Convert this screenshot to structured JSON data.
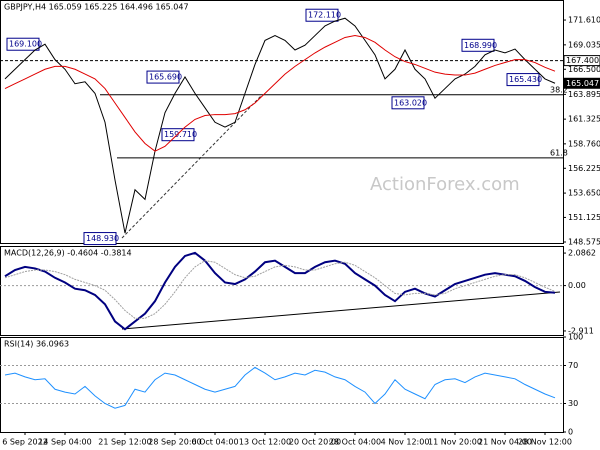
{
  "watermark": "ActionForex.com",
  "chart_data": [
    {
      "type": "line",
      "title": "GBPJPY,H4 165.059 165.225 164.496 165.047",
      "categories": [
        null,
        null,
        "6 Sep 2022",
        null,
        null,
        null,
        "14 Sep 04:00",
        null,
        null,
        null,
        null,
        null,
        "21 Sep 12:00",
        null,
        null,
        null,
        null,
        "28 Sep 20:00",
        null,
        null,
        null,
        "6 Oct 04:00",
        null,
        null,
        null,
        null,
        "13 Oct 12:00",
        null,
        null,
        null,
        null,
        "20 Oct 20:00",
        null,
        null,
        null,
        "28 Oct 04:00",
        null,
        null,
        null,
        null,
        "4 Nov 12:00",
        null,
        null,
        null,
        null,
        "11 Nov 20:00",
        null,
        null,
        null,
        null,
        "21 Nov 04:00",
        null,
        null,
        null,
        "28 Nov 12:00",
        null
      ],
      "series": [
        {
          "name": "GBPJPY",
          "color": "#000000",
          "values": [
            165.5,
            166.5,
            167.5,
            168.5,
            169.1,
            167.5,
            166.5,
            165,
            165.2,
            164,
            161,
            155,
            149.5,
            154,
            153,
            158,
            162,
            164,
            165.7,
            164,
            162.5,
            161,
            160.5,
            161,
            164,
            167,
            169.5,
            170,
            169.5,
            168.5,
            169,
            170,
            171,
            171.5,
            171.8,
            171,
            169.5,
            168,
            165.5,
            166.5,
            168.5,
            166.5,
            165.5,
            163.5,
            164.5,
            165.5,
            166,
            166.8,
            168,
            168.5,
            168.2,
            168.6,
            167.5,
            166.5,
            165.5,
            165.05
          ]
        },
        {
          "name": "MA",
          "color": "#e00000",
          "values": [
            164.5,
            165,
            165.5,
            166,
            166.5,
            166.8,
            166.8,
            166.5,
            166,
            165.5,
            164.5,
            163,
            161.5,
            160,
            158.8,
            158,
            158.5,
            159.5,
            160.5,
            161.3,
            161.7,
            161.8,
            161.8,
            161.9,
            162.3,
            163,
            164,
            165,
            166,
            166.8,
            167.5,
            168.2,
            168.8,
            169.3,
            169.8,
            170,
            169.8,
            169.3,
            168.5,
            167.8,
            167.3,
            167,
            166.6,
            166.2,
            166,
            165.9,
            165.9,
            166.1,
            166.5,
            166.9,
            167.2,
            167.5,
            167.5,
            167.2,
            166.7,
            166.3
          ]
        }
      ],
      "ylim": [
        148.47,
        173.69
      ],
      "yticks": [
        {
          "value": 171.61,
          "label": "171.610"
        },
        169.035,
        {
          "value": 166.5,
          "label": "166.500"
        },
        163.895,
        161.325,
        {
          "value": 158.76,
          "label": "158.760"
        },
        156.225,
        {
          "value": 153.65,
          "label": "153.650"
        },
        151.125,
        148.575
      ],
      "annotations": [
        {
          "label": "169.100",
          "value": 169.1
        },
        {
          "label": "165.690",
          "value": 165.69
        },
        {
          "label": "148.930",
          "value": 148.93
        },
        {
          "label": "159.710",
          "value": 159.71
        },
        {
          "label": "172.110",
          "value": 172.11
        },
        {
          "label": "163.020",
          "value": 163.02
        },
        {
          "label": "168.990",
          "value": 168.99
        },
        {
          "label": "165.430",
          "value": 165.43
        }
      ],
      "price_tags": [
        {
          "label": "167.400",
          "value": 167.4
        },
        {
          "label": "165.047",
          "value": 165.047
        }
      ],
      "levels": [
        {
          "label": "38.2",
          "value": 163.85
        },
        {
          "label": "61.8",
          "value": 157.3
        }
      ]
    },
    {
      "type": "line",
      "title": "MACD(12,26,9) -0.4604 -0.3814",
      "series": [
        {
          "name": "MACD",
          "color": "#000080",
          "values": [
            0.6,
            1.0,
            1.2,
            1.1,
            0.9,
            0.5,
            0.2,
            -0.2,
            -0.3,
            -0.6,
            -1.2,
            -2.3,
            -2.8,
            -2.3,
            -1.8,
            -1,
            0.2,
            1.2,
            1.9,
            2.1,
            1.6,
            0.8,
            0.2,
            0.1,
            0.4,
            0.9,
            1.5,
            1.6,
            1.2,
            0.8,
            0.8,
            1.2,
            1.5,
            1.6,
            1.4,
            0.8,
            0.4,
            0.0,
            -0.6,
            -1.0,
            -0.4,
            -0.2,
            -0.5,
            -0.7,
            -0.3,
            0.1,
            0.3,
            0.5,
            0.7,
            0.8,
            0.7,
            0.6,
            0.3,
            -0.1,
            -0.4,
            -0.46
          ]
        },
        {
          "name": "Signal",
          "color": "#a0a0a0",
          "values": [
            0.5,
            0.7,
            0.9,
            1.0,
            1.0,
            0.9,
            0.7,
            0.4,
            0.2,
            0.0,
            -0.3,
            -0.9,
            -1.6,
            -2.1,
            -2.1,
            -1.8,
            -1.2,
            -0.4,
            0.5,
            1.2,
            1.6,
            1.5,
            1.1,
            0.7,
            0.5,
            0.6,
            0.9,
            1.2,
            1.3,
            1.2,
            1.0,
            1.0,
            1.2,
            1.4,
            1.5,
            1.3,
            0.9,
            0.5,
            0.0,
            -0.5,
            -0.6,
            -0.5,
            -0.5,
            -0.6,
            -0.5,
            -0.2,
            0.0,
            0.2,
            0.4,
            0.6,
            0.7,
            0.7,
            0.5,
            0.2,
            -0.1,
            -0.38
          ]
        }
      ],
      "ylim": [
        -3.17,
        2.54
      ],
      "yticks": [
        2.0862,
        {
          "value": 0,
          "label": "0.00"
        },
        -2.911
      ]
    },
    {
      "type": "line",
      "title": "RSI(14) 36.0963",
      "series": [
        {
          "name": "RSI",
          "color": "#1e90ff",
          "values": [
            60,
            62,
            58,
            55,
            56,
            45,
            42,
            40,
            48,
            38,
            30,
            25,
            28,
            45,
            42,
            55,
            62,
            60,
            55,
            50,
            45,
            42,
            45,
            48,
            60,
            68,
            62,
            55,
            58,
            62,
            60,
            65,
            63,
            58,
            55,
            48,
            42,
            30,
            40,
            55,
            45,
            40,
            35,
            50,
            55,
            56,
            52,
            58,
            62,
            60,
            58,
            56,
            50,
            45,
            40,
            36
          ]
        }
      ],
      "ylim": [
        0,
        100
      ],
      "yticks": [
        100,
        70,
        30,
        0
      ]
    }
  ]
}
